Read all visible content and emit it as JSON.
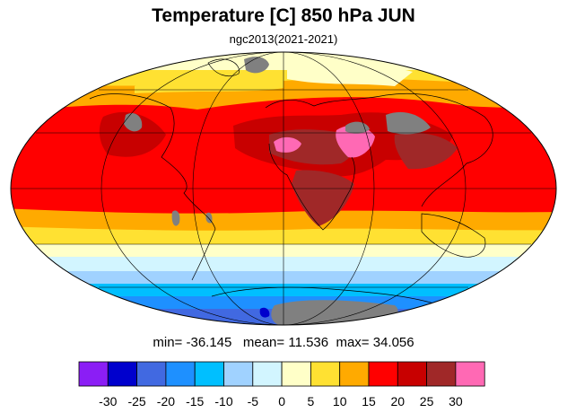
{
  "title": "Temperature [C] 850 hPa JUN",
  "subtitle": "ngc2013(2021-2021)",
  "stats": {
    "min_label": "min=",
    "min_value": "-36.145",
    "mean_label": "mean=",
    "mean_value": "11.536",
    "max_label": "max=",
    "max_value": "34.056"
  },
  "colorbar": {
    "colors": [
      "#8b1ef5",
      "#0000cd",
      "#4169e1",
      "#1e90ff",
      "#00bfff",
      "#a0d2ff",
      "#d2f5ff",
      "#ffffc8",
      "#ffe132",
      "#ffaa00",
      "#ff0000",
      "#c80000",
      "#a02828",
      "#ff69b4"
    ],
    "ticks": [
      "-30",
      "-25",
      "-20",
      "-15",
      "-10",
      "-5",
      "0",
      "5",
      "10",
      "15",
      "20",
      "25",
      "30"
    ]
  },
  "map_colors": {
    "missing": "#808080",
    "coast": "#000000"
  }
}
